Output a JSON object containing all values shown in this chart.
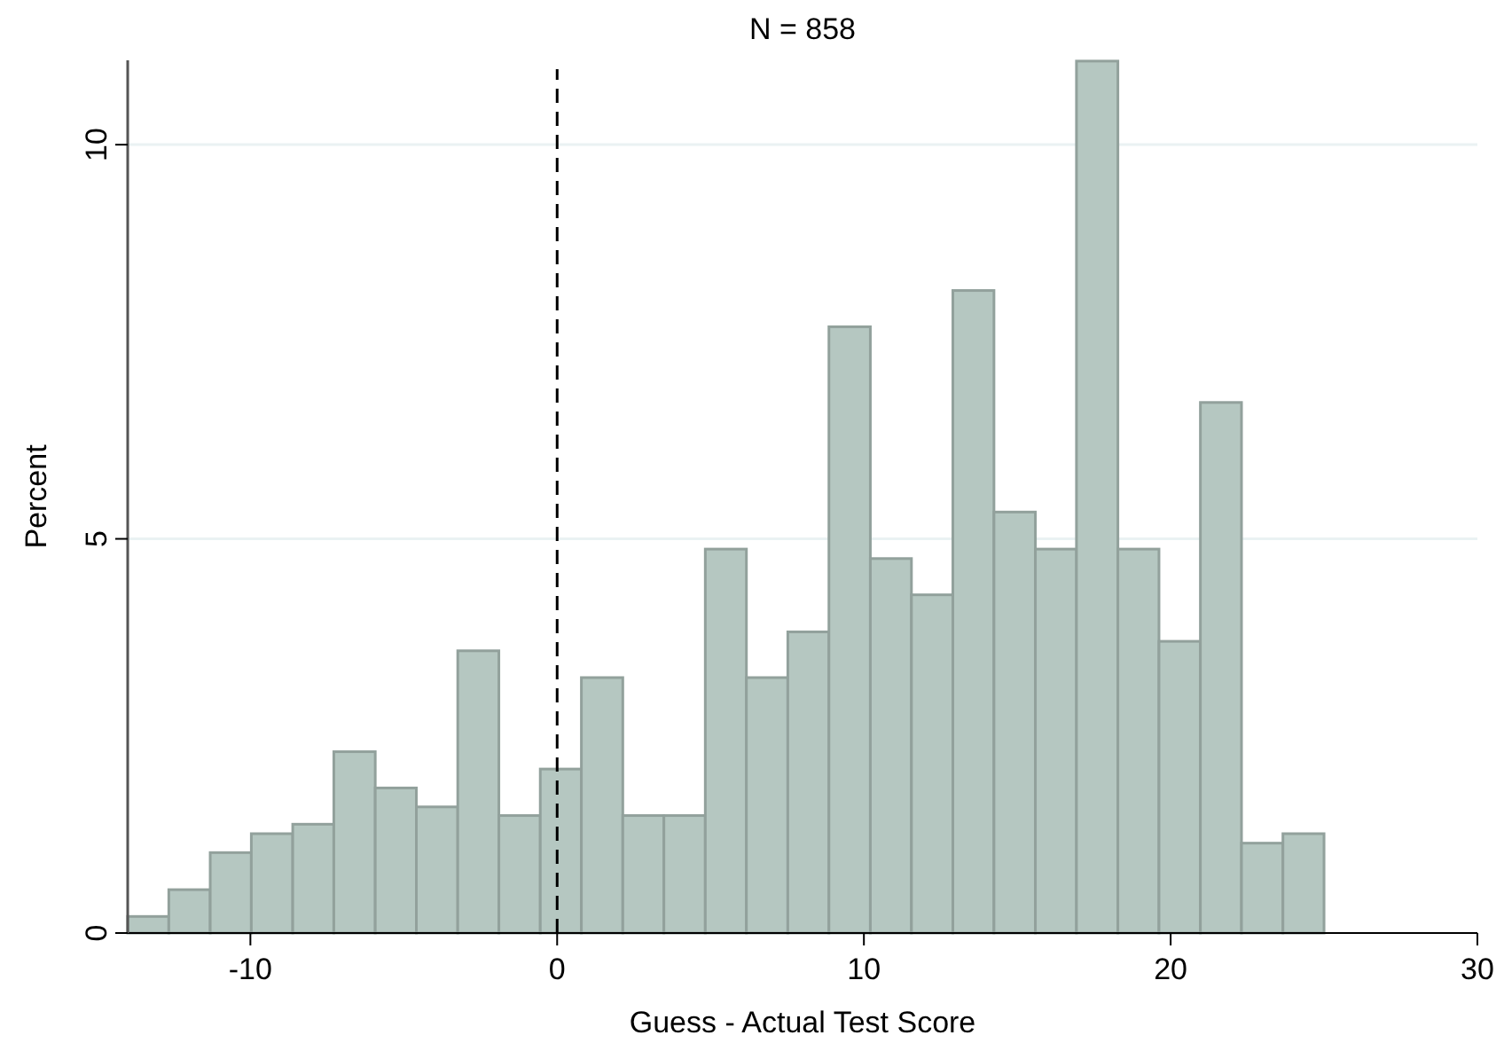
{
  "chart_data": {
    "type": "histogram",
    "title": "N = 858",
    "xlabel": "Guess - Actual Test Score",
    "ylabel": "Percent",
    "bins": [
      -14,
      -12.66,
      -11.31,
      -9.97,
      -8.62,
      -7.28,
      -5.93,
      -4.59,
      -3.24,
      -1.9,
      -0.55,
      0.79,
      2.14,
      3.48,
      4.83,
      6.17,
      7.52,
      8.86,
      10.21,
      11.55,
      12.9,
      14.24,
      15.59,
      16.93,
      18.28,
      19.62,
      20.97,
      22.31,
      23.66,
      25
    ],
    "values": [
      0.21,
      0.55,
      1.02,
      1.26,
      1.38,
      2.3,
      1.84,
      1.6,
      3.58,
      1.49,
      2.08,
      3.24,
      1.49,
      1.49,
      4.87,
      3.24,
      3.82,
      7.69,
      4.75,
      4.29,
      8.15,
      5.34,
      4.87,
      11.06,
      4.87,
      3.7,
      6.73,
      1.14,
      1.26
    ],
    "color": "#b5c7c1",
    "xlim": [
      -14,
      30
    ],
    "xticks": [
      -10,
      0,
      10,
      20,
      30
    ],
    "ylim": [
      0,
      11.07
    ],
    "yticks": [
      0,
      5,
      10
    ],
    "grid": "y",
    "ref_lines": [
      {
        "axis": "x",
        "value": 0,
        "line_style": "dashed",
        "color": "#000000"
      }
    ]
  }
}
